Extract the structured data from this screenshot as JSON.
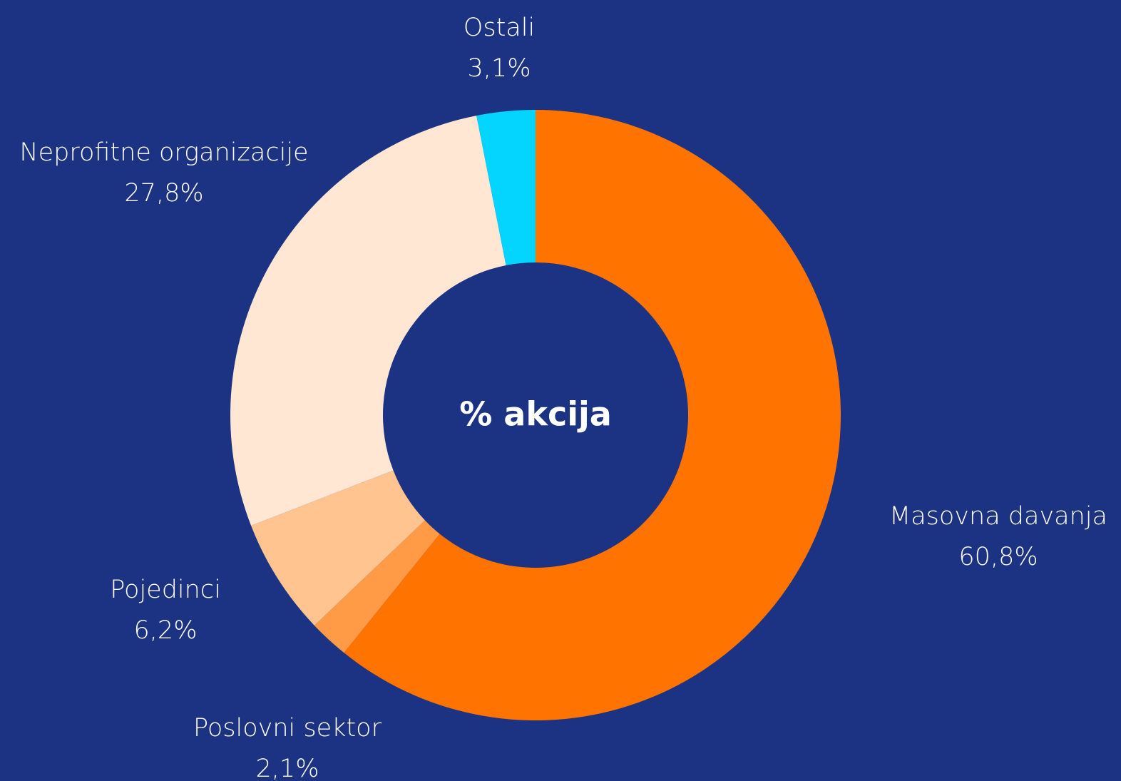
{
  "chart_data": {
    "type": "donut",
    "center_label": "% akcija",
    "categories": [
      "Masovna davanja",
      "Poslovni sektor",
      "Pojedinci",
      "Neprofitne organizacije",
      "Ostali"
    ],
    "values": [
      60.8,
      2.1,
      6.2,
      27.8,
      3.1
    ],
    "value_labels": [
      "60,8%",
      "2,1%",
      "6,2%",
      "27,8%",
      "3,1%"
    ],
    "colors": [
      "#ff7300",
      "#ff9b47",
      "#ffc490",
      "#ffe7d4",
      "#03d5ff"
    ]
  }
}
